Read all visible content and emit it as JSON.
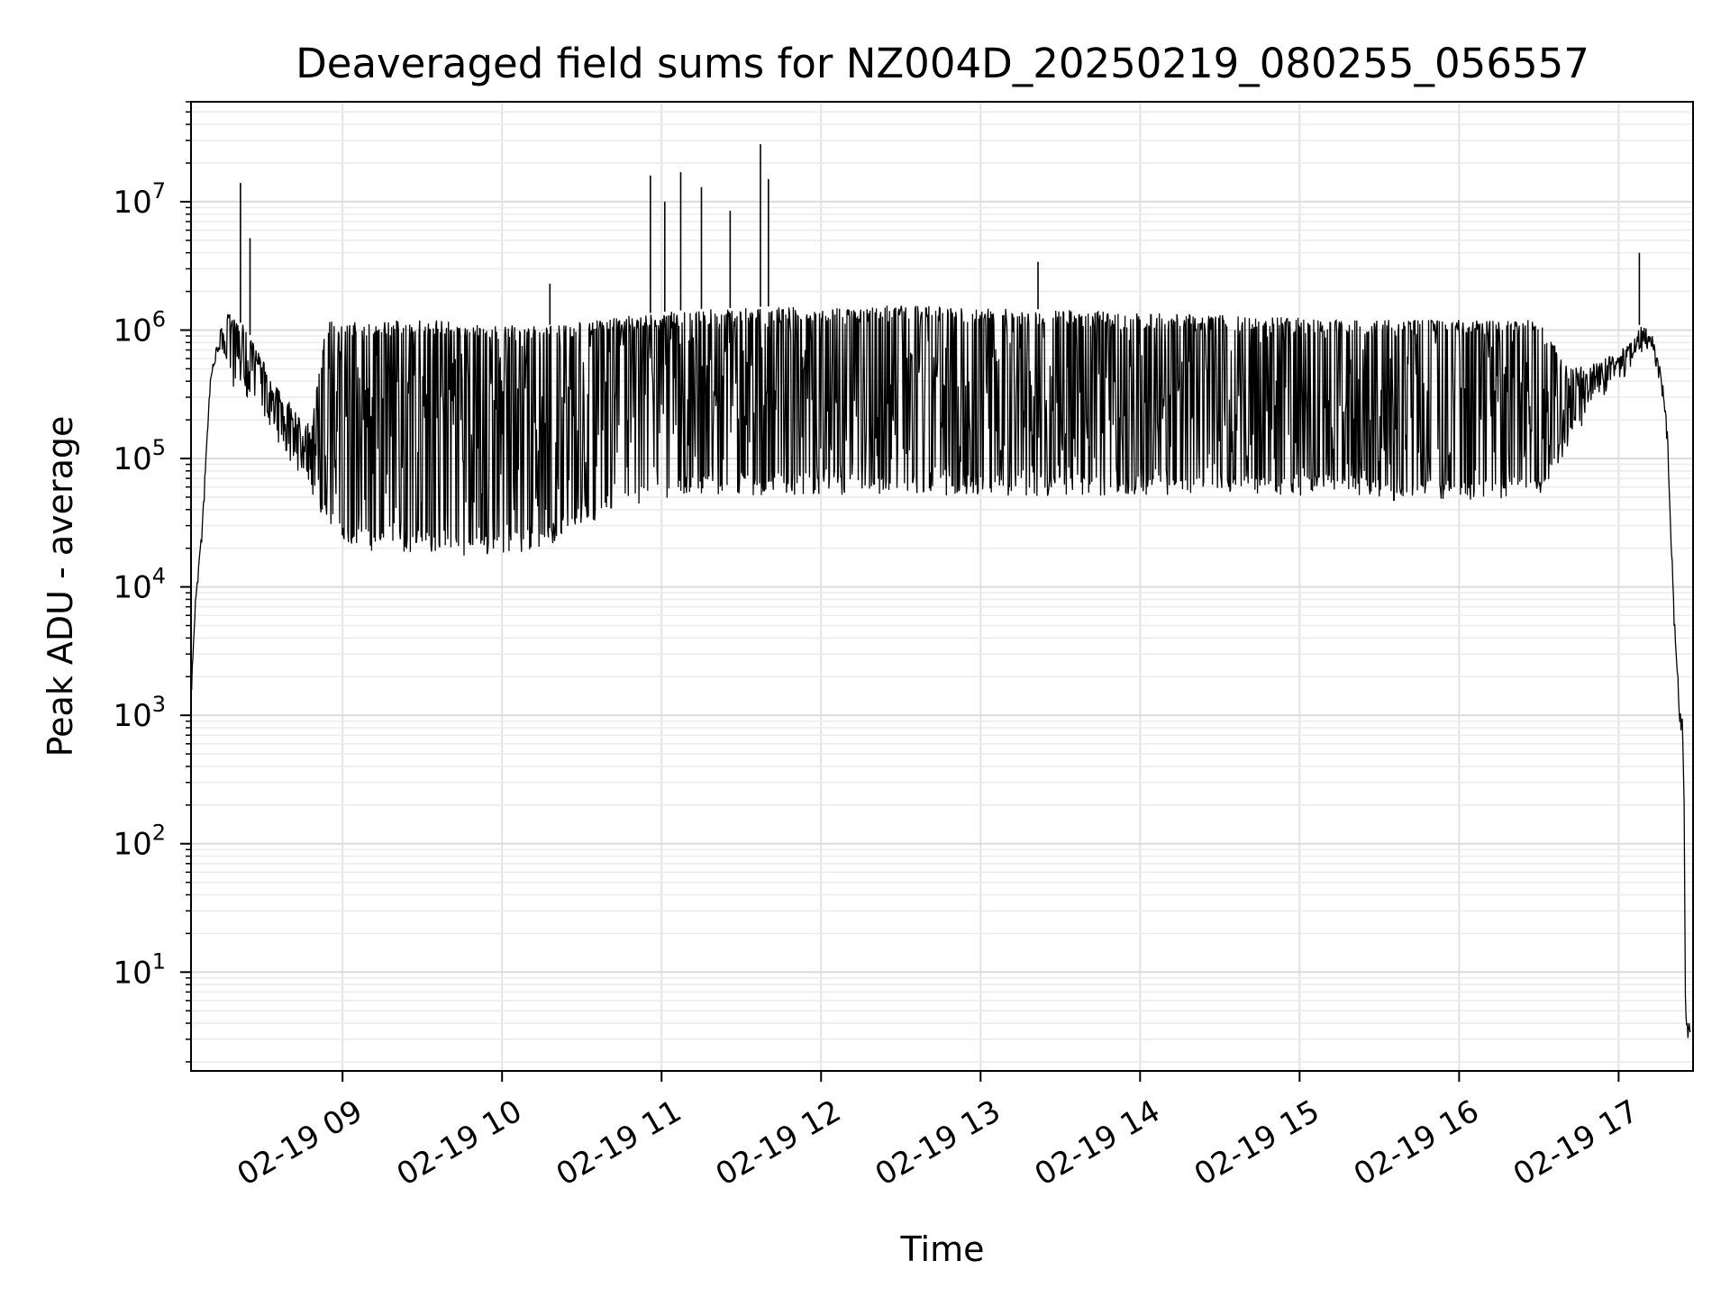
{
  "chart_data": {
    "type": "line",
    "title": "Deaveraged field sums for NZ004D_20250219_080255_056557",
    "xlabel": "Time",
    "ylabel": "Peak ADU - average",
    "y_scale": "log",
    "ylim": [
      1.7,
      60000000
    ],
    "xlim": [
      "2025-02-19 08:03",
      "2025-02-19 17:28"
    ],
    "grid": true,
    "x_ticks": [
      "02-19 09",
      "02-19 10",
      "02-19 11",
      "02-19 12",
      "02-19 13",
      "02-19 14",
      "02-19 15",
      "02-19 16",
      "02-19 17"
    ],
    "x_tick_hours": [
      9,
      10,
      11,
      12,
      13,
      14,
      15,
      16,
      17
    ],
    "y_ticks": [
      {
        "value": 10,
        "base": "10",
        "exp": "1"
      },
      {
        "value": 100,
        "base": "10",
        "exp": "2"
      },
      {
        "value": 1000,
        "base": "10",
        "exp": "3"
      },
      {
        "value": 10000,
        "base": "10",
        "exp": "4"
      },
      {
        "value": 100000,
        "base": "10",
        "exp": "5"
      },
      {
        "value": 1000000,
        "base": "10",
        "exp": "6"
      },
      {
        "value": 10000000,
        "base": "10",
        "exp": "7"
      }
    ],
    "line_color": "#000000",
    "series": [
      {
        "x_hours": [
          8.05,
          8.08,
          8.12,
          8.17,
          8.22,
          8.27,
          8.33,
          8.38,
          8.45,
          8.5,
          8.55,
          8.6,
          8.7,
          8.8,
          8.9,
          9.0,
          9.2,
          9.4,
          9.6,
          9.8,
          10.0,
          10.3,
          10.6,
          10.9,
          11.2,
          11.5,
          11.8,
          12.2,
          12.6,
          13.0,
          13.4,
          13.8,
          14.2,
          14.6,
          15.0,
          15.3,
          15.6,
          15.9,
          16.2,
          16.5,
          16.7,
          16.85,
          17.0,
          17.1,
          17.15,
          17.2,
          17.25,
          17.3,
          17.35,
          17.38,
          17.4,
          17.41,
          17.42,
          17.45
        ],
        "upper": [
          1600,
          8000,
          30000,
          400000,
          900000,
          1400000,
          1200000,
          1100000,
          800000,
          600000,
          400000,
          350000,
          250000,
          180000,
          1200000,
          1200000,
          1200000,
          1200000,
          1200000,
          1150000,
          1100000,
          1100000,
          1200000,
          1350000,
          1450000,
          1500000,
          1550000,
          1550000,
          1550000,
          1500000,
          1450000,
          1400000,
          1350000,
          1300000,
          1250000,
          1200000,
          1200000,
          1200000,
          1200000,
          1200000,
          500000,
          550000,
          700000,
          900000,
          1250000,
          1000000,
          700000,
          200000,
          5000,
          1200,
          800,
          300,
          4,
          4
        ],
        "lower": [
          1600,
          8000,
          30000,
          400000,
          700000,
          500000,
          400000,
          350000,
          300000,
          250000,
          200000,
          150000,
          100000,
          60000,
          35000,
          25000,
          22000,
          22000,
          22000,
          20000,
          20000,
          25000,
          40000,
          50000,
          60000,
          60000,
          60000,
          60000,
          60000,
          60000,
          60000,
          60000,
          60000,
          60000,
          60000,
          60000,
          55000,
          55000,
          55000,
          60000,
          150000,
          300000,
          450000,
          550000,
          800000,
          700000,
          500000,
          200000,
          5000,
          1200,
          800,
          300,
          4,
          4
        ]
      }
    ],
    "spikes": [
      {
        "hour": 8.36,
        "value": 14000000
      },
      {
        "hour": 8.42,
        "value": 5200000
      },
      {
        "hour": 10.3,
        "value": 2300000
      },
      {
        "hour": 10.93,
        "value": 16000000
      },
      {
        "hour": 11.02,
        "value": 10000000
      },
      {
        "hour": 11.12,
        "value": 17000000
      },
      {
        "hour": 11.25,
        "value": 13000000
      },
      {
        "hour": 11.43,
        "value": 8500000
      },
      {
        "hour": 11.62,
        "value": 28000000
      },
      {
        "hour": 11.67,
        "value": 15000000
      },
      {
        "hour": 13.36,
        "value": 3400000
      },
      {
        "hour": 17.13,
        "value": 4000000
      }
    ]
  }
}
